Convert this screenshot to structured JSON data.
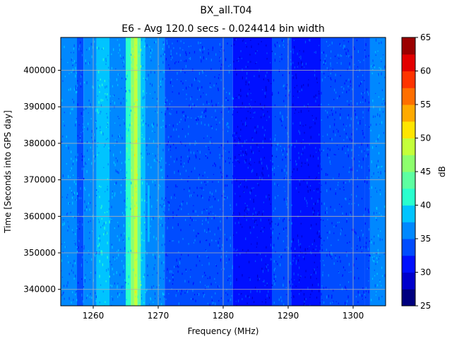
{
  "chart_data": {
    "type": "heatmap",
    "title": "BX_all.T04",
    "subtitle": "E6 - Avg 120.0 secs - 0.024414 bin width",
    "xlabel": "Frequency (MHz)",
    "ylabel": "Time [Seconds into GPS day]",
    "xlim": [
      1255,
      1305
    ],
    "ylim": [
      335500,
      409000
    ],
    "x_ticks": [
      1260,
      1270,
      1280,
      1290,
      1300
    ],
    "y_ticks": [
      340000,
      350000,
      360000,
      370000,
      380000,
      390000,
      400000
    ],
    "grid": true,
    "colorbar": {
      "label": "dB",
      "range": [
        25,
        65
      ],
      "ticks": [
        25,
        30,
        35,
        40,
        45,
        50,
        55,
        60,
        65
      ],
      "levels": [
        25,
        27.5,
        30,
        32.5,
        35,
        37.5,
        40,
        42.5,
        45,
        47.5,
        50,
        52.5,
        55,
        57.5,
        60,
        62.5,
        65
      ],
      "colors": [
        "#00007f",
        "#0000cc",
        "#0010ff",
        "#004cff",
        "#0088ff",
        "#00c4ff",
        "#29ffce",
        "#5dffa1",
        "#8dff6d",
        "#c4ff3a",
        "#ffe500",
        "#ffaa00",
        "#ff6f00",
        "#ff3400",
        "#e30000",
        "#9b0000"
      ]
    },
    "frequency_profile_db": [
      {
        "from": 1255,
        "to": 1257.5,
        "db": 36
      },
      {
        "from": 1257.5,
        "to": 1258.5,
        "db": 33
      },
      {
        "from": 1258.5,
        "to": 1260.5,
        "db": 36
      },
      {
        "from": 1260.5,
        "to": 1262.5,
        "db": 38
      },
      {
        "from": 1262.5,
        "to": 1265.0,
        "db": 36
      },
      {
        "from": 1265.0,
        "to": 1265.8,
        "db": 40
      },
      {
        "from": 1265.8,
        "to": 1266.3,
        "db": 45
      },
      {
        "from": 1266.3,
        "to": 1266.8,
        "db": 49
      },
      {
        "from": 1266.8,
        "to": 1267.3,
        "db": 44
      },
      {
        "from": 1267.3,
        "to": 1268.0,
        "db": 39
      },
      {
        "from": 1268.0,
        "to": 1271.0,
        "db": 36
      },
      {
        "from": 1271.0,
        "to": 1281.5,
        "db": 34
      },
      {
        "from": 1281.5,
        "to": 1287.5,
        "db": 31
      },
      {
        "from": 1287.5,
        "to": 1290.5,
        "db": 34
      },
      {
        "from": 1290.5,
        "to": 1295.0,
        "db": 32
      },
      {
        "from": 1295.0,
        "to": 1301.8,
        "db": 34
      },
      {
        "from": 1301.8,
        "to": 1302.6,
        "db": 33
      },
      {
        "from": 1302.6,
        "to": 1305,
        "db": 36
      }
    ],
    "annotations": [
      {
        "type": "vertical-segment",
        "x": 1268.5,
        "y_from": 353000,
        "y_to": 368500,
        "db": 39
      }
    ]
  }
}
